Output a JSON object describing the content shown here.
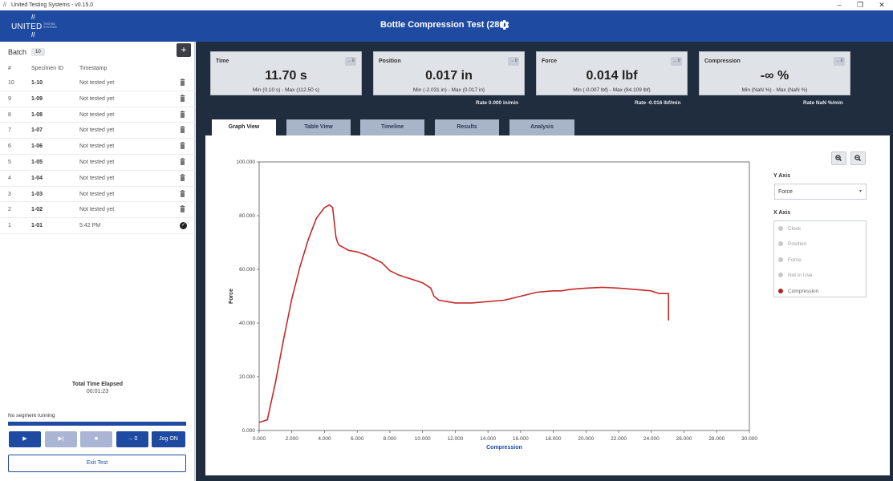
{
  "window": {
    "title": "United Testing Systems - v0.15.0",
    "controls": [
      "–",
      "❐",
      "✕"
    ]
  },
  "header": {
    "logo_text": "UNITED",
    "logo_subtext": [
      "TESTING",
      "SYSTEMS"
    ],
    "title": "Bottle Compression Test (280)",
    "settings_icon": "gear-icon"
  },
  "sidebar": {
    "batch_label": "Batch",
    "batch_count": "10",
    "add_button": "+",
    "columns": {
      "num": "#",
      "specimen_id": "Specimen ID",
      "timestamp": "Timestamp"
    },
    "specimens": [
      {
        "num": "10",
        "id": "1-10",
        "timestamp": "Not tested yet",
        "status": "untested"
      },
      {
        "num": "9",
        "id": "1-09",
        "timestamp": "Not tested yet",
        "status": "untested"
      },
      {
        "num": "8",
        "id": "1-08",
        "timestamp": "Not tested yet",
        "status": "untested"
      },
      {
        "num": "7",
        "id": "1-07",
        "timestamp": "Not tested yet",
        "status": "untested"
      },
      {
        "num": "6",
        "id": "1-06",
        "timestamp": "Not tested yet",
        "status": "untested"
      },
      {
        "num": "5",
        "id": "1-05",
        "timestamp": "Not tested yet",
        "status": "untested"
      },
      {
        "num": "4",
        "id": "1-04",
        "timestamp": "Not tested yet",
        "status": "untested"
      },
      {
        "num": "3",
        "id": "1-03",
        "timestamp": "Not tested yet",
        "status": "untested"
      },
      {
        "num": "2",
        "id": "1-02",
        "timestamp": "Not tested yet",
        "status": "untested"
      },
      {
        "num": "1",
        "id": "1-01",
        "timestamp": "5:42 PM",
        "status": "tested"
      }
    ],
    "elapsed_label": "Total Time Elapsed",
    "elapsed_value": "00:01:23",
    "segment_status": "No segment running",
    "controls": {
      "play": "▶",
      "step": "▶|",
      "stop": "■",
      "zero": "→ 0",
      "jog": "Jog ON"
    },
    "exit_button": "Exit Test"
  },
  "stats": [
    {
      "label": "Time",
      "value": "11.70 s",
      "range": "Min (0.10 s) - Max (112.50 s)",
      "zero": "→ 0",
      "rate": ""
    },
    {
      "label": "Position",
      "value": "0.017 in",
      "range": "Min (-2.031 in) - Max (0.017 in)",
      "zero": "→ 0",
      "rate": "Rate 0.000 in/min"
    },
    {
      "label": "Force",
      "value": "0.014 lbf",
      "range": "Min (-0.007 lbf) - Max (84.109 lbf)",
      "zero": "→ 0",
      "rate": "Rate -0.016 lbf/min"
    },
    {
      "label": "Compression",
      "value": "-∞ %",
      "range": "Min (NaN %) - Max (NaN %)",
      "zero": "→ 0",
      "rate": "Rate NaN %/min"
    }
  ],
  "tabs": [
    {
      "label": "Graph View",
      "active": true
    },
    {
      "label": "Table View",
      "active": false
    },
    {
      "label": "Timeline",
      "active": false
    },
    {
      "label": "Results",
      "active": false
    },
    {
      "label": "Analysis",
      "active": false
    }
  ],
  "graph_controls": {
    "zoom_in_icon": "zoom-in-icon",
    "zoom_out_icon": "zoom-out-icon",
    "y_axis_label": "Y Axis",
    "y_axis_value": "Force",
    "x_axis_label": "X Axis",
    "x_axis_options": [
      {
        "label": "Clock",
        "selected": false
      },
      {
        "label": "Position",
        "selected": false
      },
      {
        "label": "Force",
        "selected": false
      },
      {
        "label": "Not in Use",
        "selected": false
      },
      {
        "label": "Compression",
        "selected": true
      }
    ]
  },
  "chart_data": {
    "type": "line",
    "xlabel": "Compression",
    "ylabel": "Force",
    "xlim": [
      0,
      30
    ],
    "ylim": [
      0,
      100
    ],
    "x_ticks": [
      "0.000",
      "2.000",
      "4.000",
      "6.000",
      "8.000",
      "10.000",
      "12.000",
      "14.000",
      "16.000",
      "18.000",
      "20.000",
      "22.000",
      "24.000",
      "26.000",
      "28.000",
      "30.000"
    ],
    "y_ticks": [
      "0.000",
      "20.000",
      "40.000",
      "60.000",
      "80.000",
      "100.000"
    ],
    "grid": false,
    "line_color": "#c62828",
    "series": [
      {
        "x": [
          0.0,
          0.5,
          1.0,
          1.5,
          2.0,
          2.5,
          3.0,
          3.5,
          4.0,
          4.3,
          4.5,
          4.7,
          4.8,
          4.9,
          5.2,
          5.5,
          6.0,
          6.5,
          7.0,
          7.5,
          8.0,
          8.5,
          9.0,
          10.0,
          10.5,
          10.7,
          11.0,
          11.5,
          12.0,
          13.0,
          14.0,
          15.0,
          16.0,
          17.0,
          18.0,
          18.5,
          19.0,
          20.0,
          21.0,
          22.0,
          23.0,
          24.0,
          24.2,
          24.5,
          25.0,
          25.05,
          25.05
        ],
        "y": [
          3,
          4,
          18,
          34,
          49,
          61,
          71,
          79,
          83,
          84,
          83,
          72,
          70,
          69,
          68,
          67,
          66.5,
          65.5,
          64,
          62.5,
          59.5,
          58,
          57,
          55,
          53,
          50,
          48.5,
          48,
          47.5,
          47.5,
          48,
          48.5,
          50,
          51.5,
          52,
          52,
          52.5,
          53,
          53.3,
          53,
          52.5,
          52,
          51.5,
          51,
          51,
          51,
          41
        ]
      }
    ]
  }
}
